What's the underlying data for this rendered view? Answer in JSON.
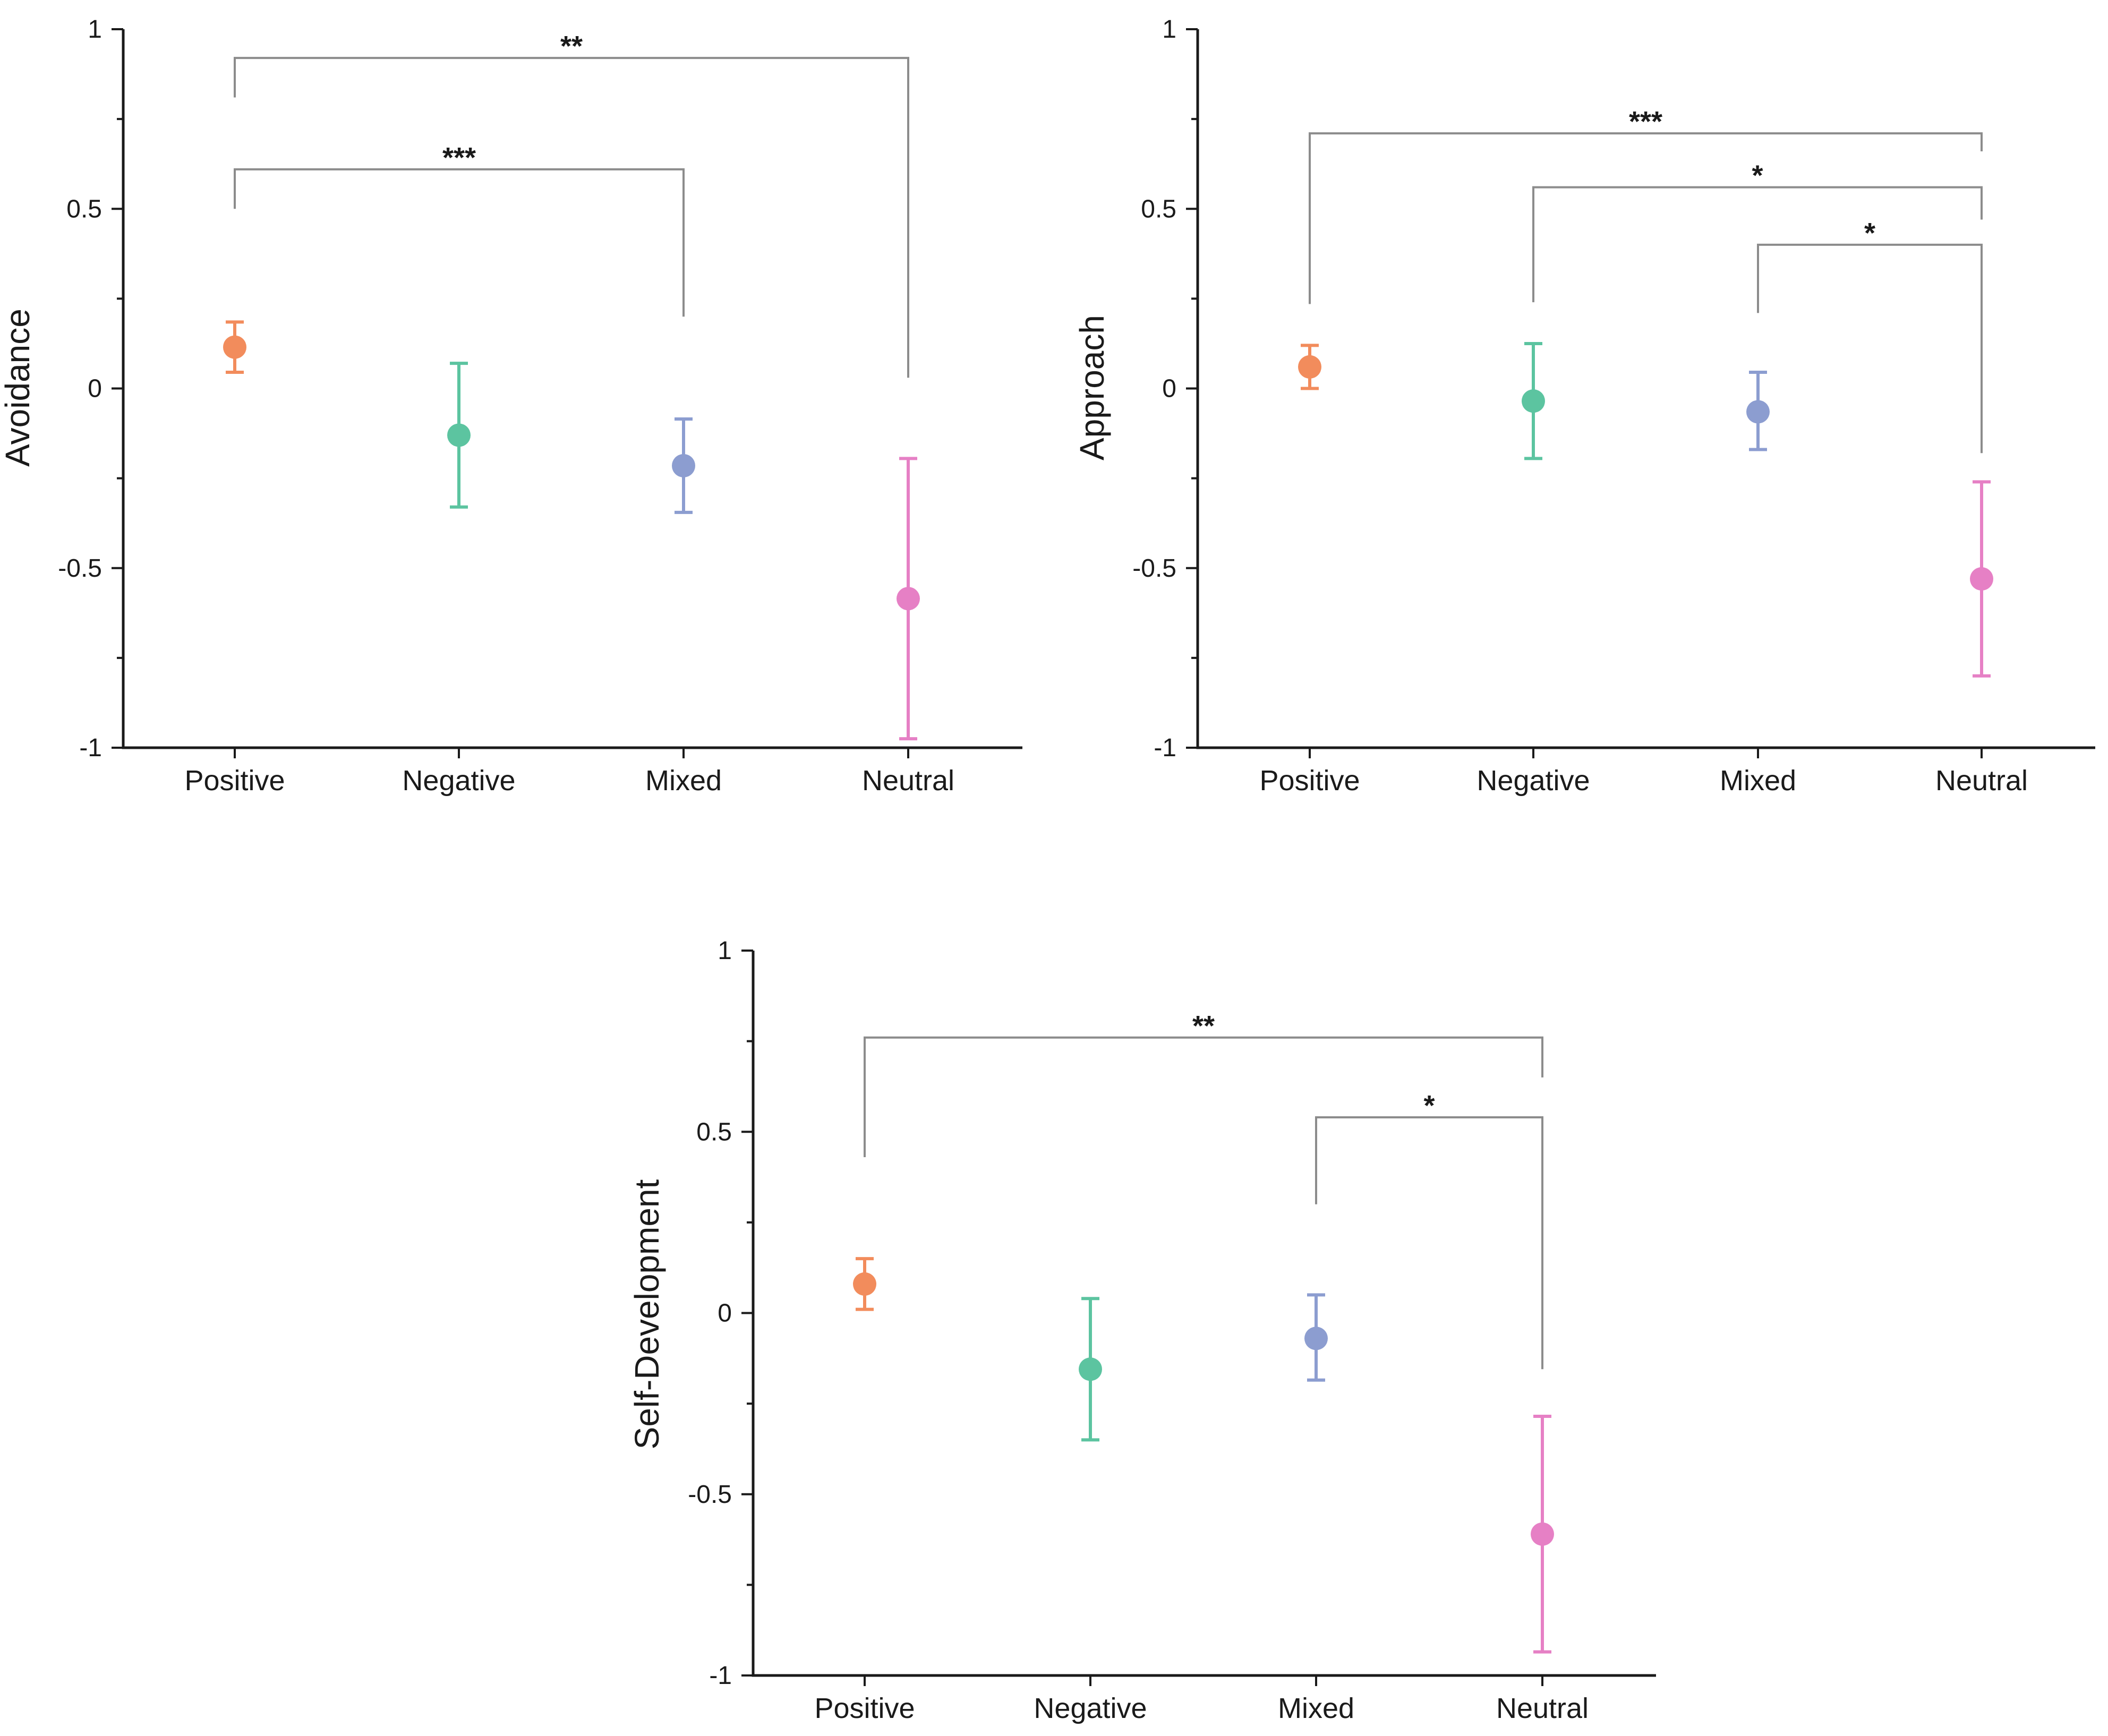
{
  "chart_data": [
    {
      "type": "scatter",
      "ylabel": "Avoidance",
      "xlabel": "",
      "categories": [
        "Positive",
        "Negative",
        "Mixed",
        "Neutral"
      ],
      "ylim": [
        -1,
        1
      ],
      "yticks": [
        1,
        0.5,
        0,
        -0.5,
        -1
      ],
      "ytick_labels": [
        "1",
        "0.5",
        "0",
        "-0.5",
        "-1"
      ],
      "series": [
        {
          "name": "mean",
          "values": [
            0.115,
            -0.13,
            -0.215,
            -0.585
          ]
        },
        {
          "name": "error_low",
          "values": [
            0.045,
            -0.33,
            -0.345,
            -0.975
          ]
        },
        {
          "name": "error_high",
          "values": [
            0.185,
            0.07,
            -0.085,
            -0.195
          ]
        }
      ],
      "colors": [
        "#f28c5c",
        "#5cc4a0",
        "#8c9dd0",
        "#e680c5"
      ],
      "significance": [
        {
          "from": "Positive",
          "to": "Mixed",
          "label": "***",
          "level": 0.61,
          "drop_from": 0.5,
          "drop_to": 0.2
        },
        {
          "from": "Positive",
          "to": "Neutral",
          "label": "**",
          "level": 0.92,
          "drop_from": 0.81,
          "drop_to": 0.03
        }
      ]
    },
    {
      "type": "scatter",
      "ylabel": "Approach",
      "xlabel": "",
      "categories": [
        "Positive",
        "Negative",
        "Mixed",
        "Neutral"
      ],
      "ylim": [
        -1,
        1
      ],
      "yticks": [
        1,
        0.5,
        0,
        -0.5,
        -1
      ],
      "ytick_labels": [
        "1",
        "0.5",
        "0",
        "-0.5",
        "-1"
      ],
      "series": [
        {
          "name": "mean",
          "values": [
            0.06,
            -0.035,
            -0.065,
            -0.53
          ]
        },
        {
          "name": "error_low",
          "values": [
            0.0,
            -0.195,
            -0.17,
            -0.8
          ]
        },
        {
          "name": "error_high",
          "values": [
            0.12,
            0.125,
            0.045,
            -0.26
          ]
        }
      ],
      "colors": [
        "#f28c5c",
        "#5cc4a0",
        "#8c9dd0",
        "#e680c5"
      ],
      "significance": [
        {
          "from": "Positive",
          "to": "Neutral",
          "label": "***",
          "level": 0.71,
          "drop_from": 0.235,
          "drop_to": 0.66
        },
        {
          "from": "Negative",
          "to": "Neutral",
          "label": "*",
          "level": 0.56,
          "drop_from": 0.24,
          "drop_to": 0.47
        },
        {
          "from": "Mixed",
          "to": "Neutral",
          "label": "*",
          "level": 0.4,
          "drop_from": 0.21,
          "drop_to": -0.18
        }
      ]
    },
    {
      "type": "scatter",
      "ylabel": "Self-Development",
      "xlabel": "",
      "categories": [
        "Positive",
        "Negative",
        "Mixed",
        "Neutral"
      ],
      "ylim": [
        -1,
        1
      ],
      "yticks": [
        1,
        0.5,
        0,
        -0.5,
        -1
      ],
      "ytick_labels": [
        "1",
        "0.5",
        "0",
        "-0.5",
        "-1"
      ],
      "series": [
        {
          "name": "mean",
          "values": [
            0.08,
            -0.155,
            -0.07,
            -0.61
          ]
        },
        {
          "name": "error_low",
          "values": [
            0.01,
            -0.35,
            -0.185,
            -0.935
          ]
        },
        {
          "name": "error_high",
          "values": [
            0.15,
            0.04,
            0.05,
            -0.285
          ]
        }
      ],
      "colors": [
        "#f28c5c",
        "#5cc4a0",
        "#8c9dd0",
        "#e680c5"
      ],
      "significance": [
        {
          "from": "Positive",
          "to": "Neutral",
          "label": "**",
          "level": 0.76,
          "drop_from": 0.43,
          "drop_to": 0.65
        },
        {
          "from": "Mixed",
          "to": "Neutral",
          "label": "*",
          "level": 0.54,
          "drop_from": 0.3,
          "drop_to": -0.155
        }
      ]
    }
  ]
}
